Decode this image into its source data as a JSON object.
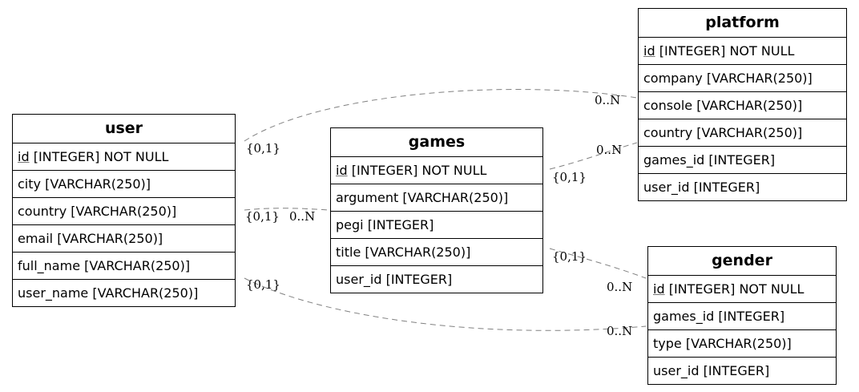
{
  "entities": {
    "user": {
      "name": "user",
      "columns": [
        {
          "pk": "id",
          "rest": " [INTEGER] NOT NULL"
        },
        {
          "pk": "",
          "rest": "city [VARCHAR(250)]"
        },
        {
          "pk": "",
          "rest": "country [VARCHAR(250)]"
        },
        {
          "pk": "",
          "rest": "email [VARCHAR(250)]"
        },
        {
          "pk": "",
          "rest": "full_name [VARCHAR(250)]"
        },
        {
          "pk": "",
          "rest": "user_name [VARCHAR(250)]"
        }
      ]
    },
    "games": {
      "name": "games",
      "columns": [
        {
          "pk": "id",
          "rest": " [INTEGER] NOT NULL"
        },
        {
          "pk": "",
          "rest": "argument [VARCHAR(250)]"
        },
        {
          "pk": "",
          "rest": "pegi [INTEGER]"
        },
        {
          "pk": "",
          "rest": "title [VARCHAR(250)]"
        },
        {
          "pk": "",
          "rest": "user_id [INTEGER]"
        }
      ]
    },
    "platform": {
      "name": "platform",
      "columns": [
        {
          "pk": "id",
          "rest": " [INTEGER] NOT NULL"
        },
        {
          "pk": "",
          "rest": "company [VARCHAR(250)]"
        },
        {
          "pk": "",
          "rest": "console [VARCHAR(250)]"
        },
        {
          "pk": "",
          "rest": "country [VARCHAR(250)]"
        },
        {
          "pk": "",
          "rest": "games_id [INTEGER]"
        },
        {
          "pk": "",
          "rest": "user_id [INTEGER]"
        }
      ]
    },
    "gender": {
      "name": "gender",
      "columns": [
        {
          "pk": "id",
          "rest": " [INTEGER] NOT NULL"
        },
        {
          "pk": "",
          "rest": "games_id [INTEGER]"
        },
        {
          "pk": "",
          "rest": "type [VARCHAR(250)]"
        },
        {
          "pk": "",
          "rest": "user_id [INTEGER]"
        }
      ]
    }
  },
  "relations": {
    "user_platform": {
      "from": "user",
      "to": "platform",
      "from_card": "{0,1}",
      "to_card": "0..N"
    },
    "user_games": {
      "from": "user",
      "to": "games",
      "from_card": "{0,1}",
      "to_card": "0..N"
    },
    "user_gender": {
      "from": "user",
      "to": "gender",
      "from_card": "{0,1}",
      "to_card": "0..N"
    },
    "games_platform": {
      "from": "games",
      "to": "platform",
      "from_card": "{0,1}",
      "to_card": "0..N"
    },
    "games_gender": {
      "from": "games",
      "to": "gender",
      "from_card": "{0,1}",
      "to_card": "0..N"
    }
  },
  "colors": {
    "edge": "#808080",
    "border": "#000000",
    "background": "#ffffff"
  }
}
